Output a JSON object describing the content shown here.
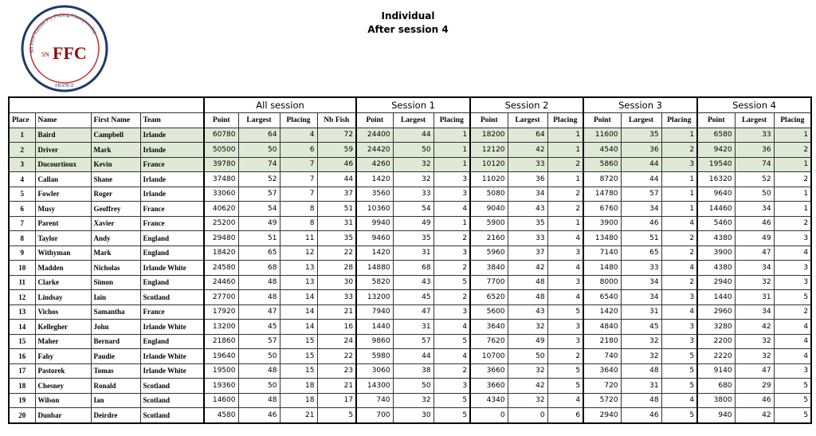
{
  "header": {
    "title": "Individual",
    "subtitle": "After session 4"
  },
  "logo": {
    "arc": "9th Five Nations Fly Fishing Championship",
    "badge": "5N",
    "initials": "FFC",
    "country": "FRANCE"
  },
  "table": {
    "groups": [
      "All session",
      "Session 1",
      "Session 2",
      "Session 3",
      "Session 4"
    ],
    "columns": [
      "Place",
      "Name",
      "First Name",
      "Team",
      "Point",
      "Largest",
      "Placing",
      "Nb Fish",
      "Point",
      "Largest",
      "Placing",
      "Point",
      "Largest",
      "Placing",
      "Point",
      "Largest",
      "Placing",
      "Point",
      "Largest",
      "Placing"
    ],
    "rows": [
      [
        1,
        "Baird",
        "Campbell",
        "Irlande",
        60780,
        64,
        4,
        72,
        24400,
        44,
        1,
        18200,
        64,
        1,
        11600,
        35,
        1,
        6580,
        33,
        1
      ],
      [
        2,
        "Driver",
        "Mark",
        "Irlande",
        50500,
        50,
        6,
        59,
        24420,
        50,
        1,
        12120,
        42,
        1,
        4540,
        36,
        2,
        9420,
        36,
        2
      ],
      [
        3,
        "Ducourtioux",
        "Kevin",
        "France",
        39780,
        74,
        7,
        46,
        4260,
        32,
        1,
        10120,
        33,
        2,
        5860,
        44,
        3,
        19540,
        74,
        1
      ],
      [
        4,
        "Callan",
        "Shane",
        "Irlande",
        37480,
        52,
        7,
        44,
        1420,
        32,
        3,
        11020,
        36,
        1,
        8720,
        44,
        1,
        16320,
        52,
        2
      ],
      [
        5,
        "Fowler",
        "Roger",
        "Irlande",
        33060,
        57,
        7,
        37,
        3560,
        33,
        3,
        5080,
        34,
        2,
        14780,
        57,
        1,
        9640,
        50,
        1
      ],
      [
        6,
        "Musy",
        "Geoffrey",
        "France",
        40620,
        54,
        8,
        51,
        10360,
        54,
        4,
        9040,
        43,
        2,
        6760,
        34,
        1,
        14460,
        34,
        1
      ],
      [
        7,
        "Parent",
        "Xavier",
        "France",
        25200,
        49,
        8,
        31,
        9940,
        49,
        1,
        5900,
        35,
        1,
        3900,
        46,
        4,
        5460,
        46,
        2
      ],
      [
        8,
        "Taylor",
        "Andy",
        "England",
        29480,
        51,
        11,
        35,
        9460,
        35,
        2,
        2160,
        33,
        4,
        13480,
        51,
        2,
        4380,
        49,
        3
      ],
      [
        9,
        "Withyman",
        "Mark",
        "England",
        18420,
        65,
        12,
        22,
        1420,
        31,
        3,
        5960,
        37,
        3,
        7140,
        65,
        2,
        3900,
        47,
        4
      ],
      [
        10,
        "Madden",
        "Nicholas",
        "Irlande White",
        24580,
        68,
        13,
        28,
        14880,
        68,
        2,
        3840,
        42,
        4,
        1480,
        33,
        4,
        4380,
        34,
        3
      ],
      [
        11,
        "Clarke",
        "Simon",
        "England",
        24460,
        48,
        13,
        30,
        5820,
        43,
        5,
        7700,
        48,
        3,
        8000,
        34,
        2,
        2940,
        32,
        3
      ],
      [
        12,
        "Lindsay",
        "Iain",
        "Scotland",
        27700,
        48,
        14,
        33,
        13200,
        45,
        2,
        6520,
        48,
        4,
        6540,
        34,
        3,
        1440,
        31,
        5
      ],
      [
        13,
        "Vichos",
        "Samantha",
        "France",
        17920,
        47,
        14,
        21,
        7940,
        47,
        3,
        5600,
        43,
        5,
        1420,
        31,
        4,
        2960,
        34,
        2
      ],
      [
        14,
        "Kellegher",
        "John",
        "Irlande White",
        13200,
        45,
        14,
        16,
        1440,
        31,
        4,
        3640,
        32,
        3,
        4840,
        45,
        3,
        3280,
        42,
        4
      ],
      [
        15,
        "Maher",
        "Bernard",
        "England",
        21860,
        57,
        15,
        24,
        9860,
        57,
        5,
        7620,
        49,
        3,
        2180,
        32,
        3,
        2200,
        32,
        4
      ],
      [
        16,
        "Fahy",
        "Paudie",
        "Irlande White",
        19640,
        50,
        15,
        22,
        5980,
        44,
        4,
        10700,
        50,
        2,
        740,
        32,
        5,
        2220,
        32,
        4
      ],
      [
        17,
        "Pastorek",
        "Tomas",
        "Irlande White",
        19500,
        48,
        15,
        23,
        3060,
        38,
        2,
        3660,
        32,
        5,
        3640,
        48,
        5,
        9140,
        47,
        3
      ],
      [
        18,
        "Chesney",
        "Ronald",
        "Scotland",
        19360,
        50,
        18,
        21,
        14300,
        50,
        3,
        3660,
        42,
        5,
        720,
        31,
        5,
        680,
        29,
        5
      ],
      [
        19,
        "Wilson",
        "Ian",
        "Scotland",
        14600,
        48,
        18,
        17,
        740,
        32,
        5,
        4340,
        32,
        4,
        5720,
        48,
        4,
        3800,
        46,
        5
      ],
      [
        20,
        "Dunbar",
        "Deirdre",
        "Scotland",
        4580,
        46,
        21,
        5,
        700,
        30,
        5,
        0,
        0,
        6,
        2940,
        46,
        5,
        940,
        42,
        5
      ]
    ]
  }
}
